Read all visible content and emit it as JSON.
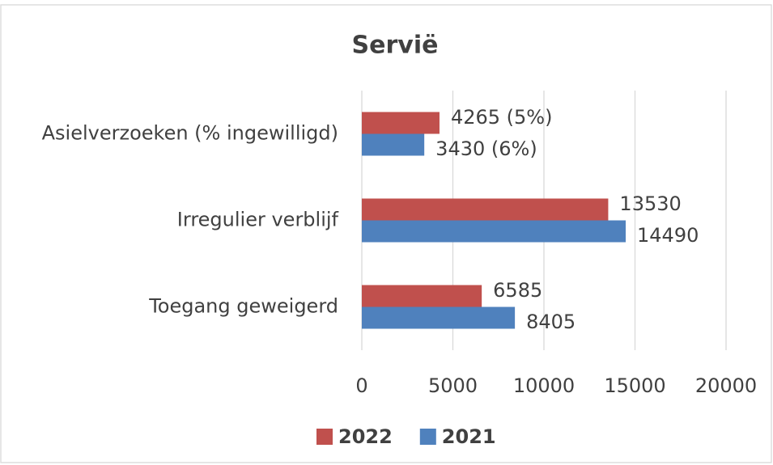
{
  "chart_data": {
    "type": "hbar",
    "title": "Servië",
    "categories": [
      "Asielverzoeken (% ingewilligd)",
      "Irregulier verblijf",
      "Toegang geweigerd"
    ],
    "series": [
      {
        "name": "2022",
        "color": "#c0504d",
        "values": [
          4265,
          13530,
          6585
        ],
        "value_labels": [
          "4265 (5%)",
          "13530",
          "6585"
        ]
      },
      {
        "name": "2021",
        "color": "#4f81bd",
        "values": [
          3430,
          14490,
          8405
        ],
        "value_labels": [
          "3430 (6%)",
          "14490",
          "8405"
        ]
      }
    ],
    "xlim": [
      0,
      20000
    ],
    "xticks": [
      0,
      5000,
      10000,
      15000,
      20000
    ],
    "grid": true,
    "legend": "bottom"
  }
}
